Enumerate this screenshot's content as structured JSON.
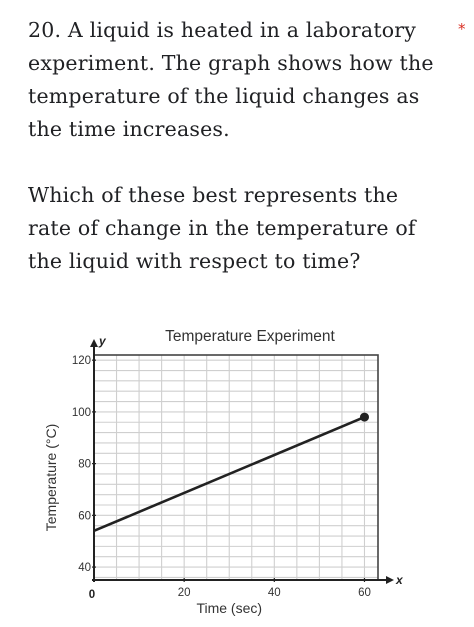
{
  "question": {
    "number": "20.",
    "stem": "A liquid is heated in a laboratory experiment. The graph shows how the temperature of the liquid changes as the time increases.",
    "prompt": "Which of these best represents the rate of change in the temperature of the liquid with respect to time?",
    "required_marker": "*"
  },
  "chart_data": {
    "type": "line",
    "title": "Temperature Experiment",
    "xlabel": "Time (sec)",
    "ylabel": "Temperature (°C)",
    "x_axis_letter": "x",
    "y_axis_letter": "y",
    "origin_label": "0",
    "xlim": [
      0,
      63
    ],
    "ylim": [
      35,
      122
    ],
    "x_ticks": [
      {
        "value": 20,
        "label": "20"
      },
      {
        "value": 40,
        "label": "40"
      },
      {
        "value": 60,
        "label": "60"
      }
    ],
    "y_ticks": [
      {
        "value": 40,
        "label": "40"
      },
      {
        "value": 60,
        "label": "60"
      },
      {
        "value": 80,
        "label": "80"
      },
      {
        "value": 100,
        "label": "100"
      },
      {
        "value": 120,
        "label": "120"
      }
    ],
    "grid": true,
    "series": [
      {
        "x": [
          0,
          60
        ],
        "y": [
          54,
          98
        ]
      }
    ],
    "end_marker": {
      "x": 60,
      "y": 98
    },
    "line_color": "#222222",
    "grid_color": "#cfcfcf"
  }
}
